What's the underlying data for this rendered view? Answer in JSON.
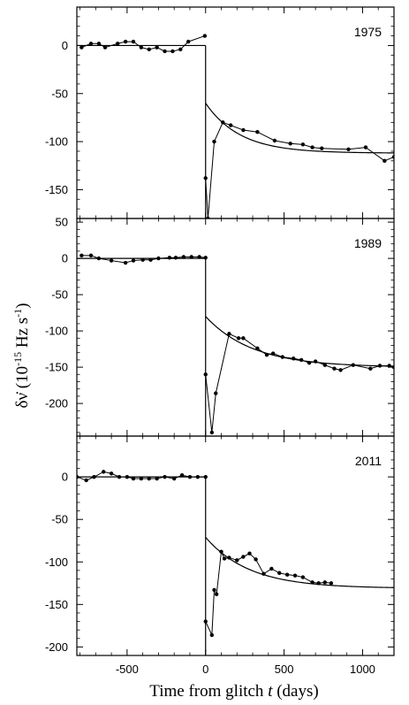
{
  "chart_data": {
    "type": "scatter",
    "xlabel_main": "Time from glitch ",
    "xlabel_var": "t",
    "xlabel_unit": "  (days)",
    "ylabel_sym": "δν̇",
    "ylabel_unit_pre": " (10",
    "ylabel_exp": "-15",
    "ylabel_unit_mid": " Hz s",
    "ylabel_exp2": "-1",
    "ylabel_unit_post": ")",
    "xlim": [
      -820,
      1200
    ],
    "xticks": [
      -500,
      0,
      500,
      1000
    ],
    "xtick_labels": [
      "-500",
      "0",
      "500",
      "1000"
    ],
    "panels": [
      {
        "label": "1975",
        "ylim": [
          -180,
          40
        ],
        "yticks": [
          0,
          -50,
          -100,
          -150
        ],
        "ytick_labels": [
          "0",
          "-50",
          "-100",
          "-150"
        ],
        "pre_points": [
          [
            -790,
            -2
          ],
          [
            -730,
            2
          ],
          [
            -680,
            2
          ],
          [
            -640,
            -2
          ],
          [
            -560,
            2
          ],
          [
            -510,
            4
          ],
          [
            -460,
            4
          ],
          [
            -410,
            -2
          ],
          [
            -360,
            -4
          ],
          [
            -310,
            -2
          ],
          [
            -260,
            -6
          ],
          [
            -210,
            -6
          ],
          [
            -160,
            -4
          ],
          [
            -110,
            4
          ],
          [
            -5,
            10
          ]
        ],
        "post_points": [
          [
            0,
            -138
          ],
          [
            15,
            -180
          ],
          [
            55,
            -100
          ],
          [
            110,
            -80
          ],
          [
            160,
            -83
          ],
          [
            240,
            -88
          ],
          [
            330,
            -90
          ],
          [
            440,
            -99
          ],
          [
            540,
            -102
          ],
          [
            620,
            -103
          ],
          [
            680,
            -106
          ],
          [
            740,
            -107
          ],
          [
            910,
            -108
          ],
          [
            1020,
            -106
          ],
          [
            1140,
            -120
          ],
          [
            1200,
            -116
          ]
        ],
        "fit_pre": 0,
        "fit_post": {
          "A": -112,
          "B": 52,
          "tau": 220
        }
      },
      {
        "label": "1989",
        "ylim": [
          -245,
          55
        ],
        "yticks": [
          50,
          0,
          -50,
          -100,
          -150,
          -200
        ],
        "ytick_labels": [
          "50",
          "0",
          "-50",
          "-100",
          "-150",
          "-200"
        ],
        "pre_points": [
          [
            -790,
            4
          ],
          [
            -730,
            4
          ],
          [
            -680,
            0
          ],
          [
            -600,
            -3
          ],
          [
            -510,
            -6
          ],
          [
            -460,
            -3
          ],
          [
            -400,
            -2
          ],
          [
            -350,
            -2
          ],
          [
            -300,
            0
          ],
          [
            -230,
            1
          ],
          [
            -190,
            1
          ],
          [
            -140,
            2
          ],
          [
            -90,
            2
          ],
          [
            -40,
            2
          ],
          [
            0,
            1
          ]
        ],
        "post_points": [
          [
            0,
            -160
          ],
          [
            40,
            -240
          ],
          [
            65,
            -186
          ],
          [
            150,
            -104
          ],
          [
            210,
            -110
          ],
          [
            240,
            -110
          ],
          [
            330,
            -124
          ],
          [
            390,
            -133
          ],
          [
            430,
            -131
          ],
          [
            490,
            -136
          ],
          [
            560,
            -138
          ],
          [
            610,
            -140
          ],
          [
            660,
            -144
          ],
          [
            700,
            -142
          ],
          [
            760,
            -147
          ],
          [
            820,
            -152
          ],
          [
            860,
            -154
          ],
          [
            940,
            -147
          ],
          [
            1050,
            -152
          ],
          [
            1110,
            -148
          ],
          [
            1170,
            -148
          ],
          [
            1200,
            -150
          ]
        ],
        "fit_pre": 0,
        "fit_post": {
          "A": -150,
          "B": 70,
          "tau": 300
        }
      },
      {
        "label": "2011",
        "ylim": [
          -210,
          48
        ],
        "yticks": [
          0,
          -50,
          -100,
          -150,
          -200
        ],
        "ytick_labels": [
          "0",
          "-50",
          "-100",
          "-150",
          "-200"
        ],
        "pre_points": [
          [
            -820,
            0
          ],
          [
            -760,
            -4
          ],
          [
            -710,
            0
          ],
          [
            -650,
            6
          ],
          [
            -600,
            4
          ],
          [
            -550,
            0
          ],
          [
            -500,
            0
          ],
          [
            -460,
            -2
          ],
          [
            -410,
            -2
          ],
          [
            -360,
            -2
          ],
          [
            -310,
            -2
          ],
          [
            -260,
            0
          ],
          [
            -200,
            -2
          ],
          [
            -150,
            2
          ],
          [
            -100,
            0
          ],
          [
            -50,
            0
          ],
          [
            0,
            0
          ]
        ],
        "post_points": [
          [
            0,
            -170
          ],
          [
            40,
            -186
          ],
          [
            55,
            -133
          ],
          [
            70,
            -138
          ],
          [
            100,
            -88
          ],
          [
            120,
            -96
          ],
          [
            150,
            -95
          ],
          [
            200,
            -98
          ],
          [
            240,
            -94
          ],
          [
            280,
            -90
          ],
          [
            320,
            -97
          ],
          [
            370,
            -114
          ],
          [
            420,
            -108
          ],
          [
            470,
            -113
          ],
          [
            520,
            -115
          ],
          [
            570,
            -116
          ],
          [
            620,
            -118
          ],
          [
            680,
            -124
          ],
          [
            720,
            -125
          ],
          [
            760,
            -124
          ],
          [
            800,
            -125
          ]
        ],
        "fit_pre": 0,
        "fit_post": {
          "A": -131,
          "B": 60,
          "tau": 280
        }
      }
    ]
  }
}
